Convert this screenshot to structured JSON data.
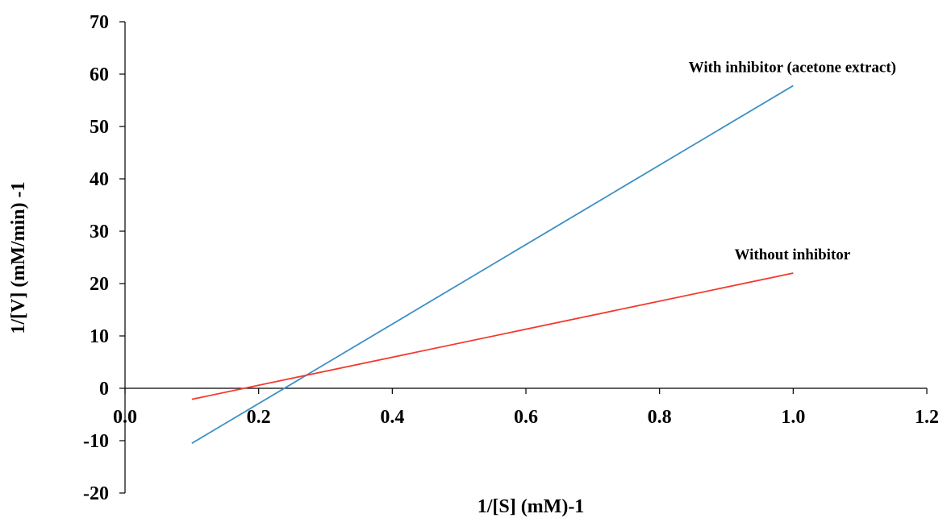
{
  "chart_data": {
    "type": "line",
    "title": "",
    "xlabel": "1/[S] (mM)-1",
    "ylabel": "1/[V] (mM/min) -1",
    "xlim": [
      0,
      1.2
    ],
    "ylim": [
      -20,
      70
    ],
    "x_ticks": [
      "0.0",
      "0.2",
      "0.4",
      "0.6",
      "0.8",
      "1.0",
      "1.2"
    ],
    "x_tick_values": [
      0,
      0.2,
      0.4,
      0.6,
      0.8,
      1.0,
      1.2
    ],
    "y_ticks": [
      "-20",
      "-10",
      "0",
      "10",
      "20",
      "30",
      "40",
      "50",
      "60",
      "70"
    ],
    "y_tick_values": [
      -20,
      -10,
      0,
      10,
      20,
      30,
      40,
      50,
      60,
      70
    ],
    "grid": false,
    "legend": "none",
    "series": [
      {
        "name": "With inhibitor (acetone extract)",
        "color": "#3d8fc4",
        "x": [
          0.1,
          1.0
        ],
        "y": [
          -10.5,
          57.8
        ]
      },
      {
        "name": "Without inhibitor",
        "color": "#f23a2f",
        "x": [
          0.1,
          1.0
        ],
        "y": [
          -2.1,
          22.0
        ]
      }
    ]
  }
}
